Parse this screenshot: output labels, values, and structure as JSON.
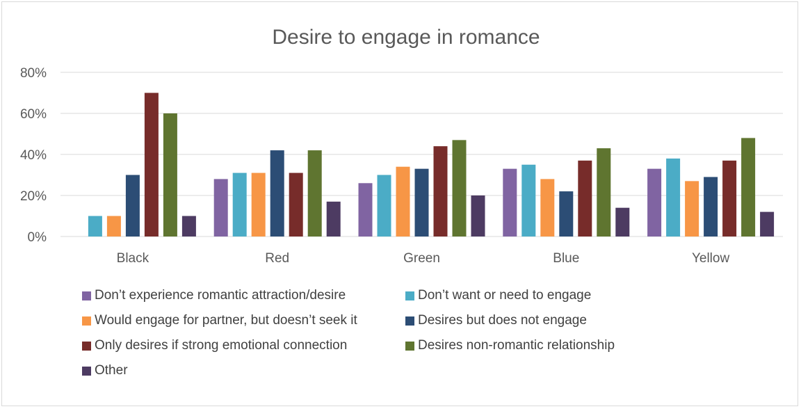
{
  "chart_data": {
    "type": "bar",
    "title": "Desire to engage in romance",
    "categories": [
      "Black",
      "Red",
      "Green",
      "Blue",
      "Yellow"
    ],
    "ylim": [
      0,
      80
    ],
    "yticks": [
      "0%",
      "20%",
      "40%",
      "60%",
      "80%"
    ],
    "ytick_values": [
      0,
      20,
      40,
      60,
      80
    ],
    "grid": true,
    "legend_position": "bottom",
    "series": [
      {
        "name": "Don’t experience romantic attraction/desire",
        "color": "#8064a2",
        "values": [
          0,
          28,
          26,
          33,
          33
        ]
      },
      {
        "name": "Don’t want or need to engage",
        "color": "#4bacc6",
        "values": [
          10,
          31,
          30,
          35,
          38
        ]
      },
      {
        "name": "Would engage for partner, but doesn’t seek it",
        "color": "#f79646",
        "values": [
          10,
          31,
          34,
          28,
          27
        ]
      },
      {
        "name": "Desires but does not engage",
        "color": "#2c4d75",
        "values": [
          30,
          42,
          33,
          22,
          29
        ]
      },
      {
        "name": "Only desires if strong emotional connection",
        "color": "#772c2a",
        "values": [
          70,
          31,
          44,
          37,
          37
        ]
      },
      {
        "name": "Desires non-romantic relationship",
        "color": "#5f7530",
        "values": [
          60,
          42,
          47,
          43,
          48
        ]
      },
      {
        "name": "Other",
        "color": "#4d3b62",
        "values": [
          10,
          17,
          20,
          14,
          12
        ]
      }
    ]
  }
}
